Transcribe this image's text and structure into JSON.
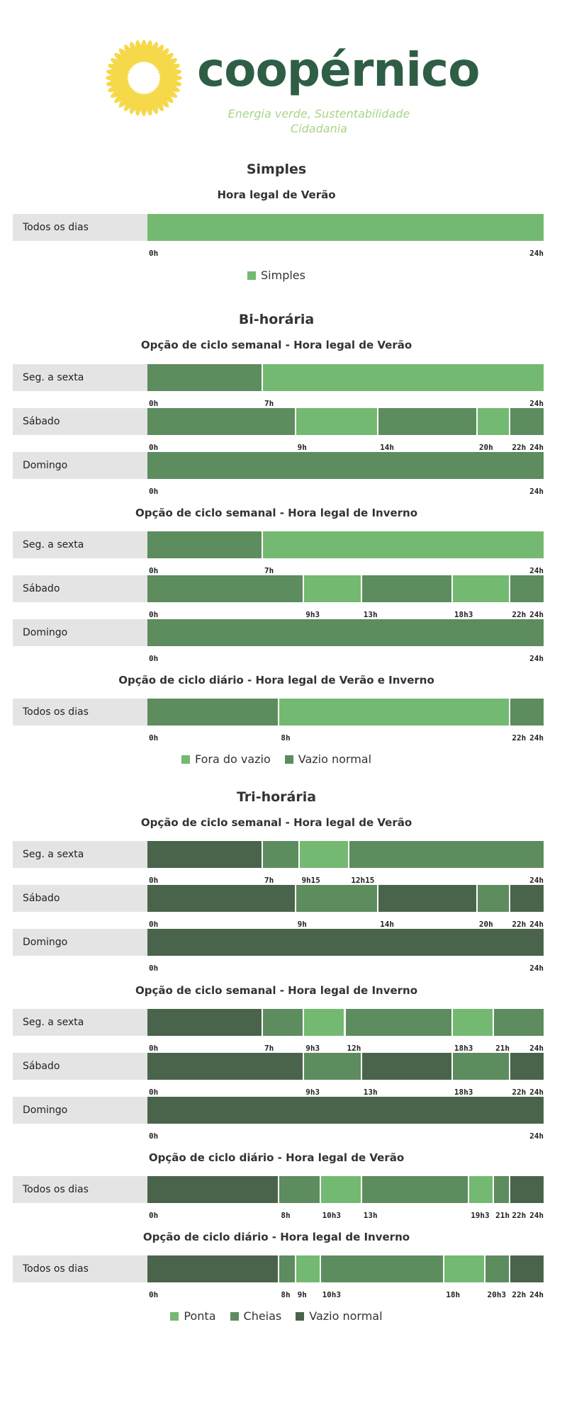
{
  "header": {
    "brand_name": "coopérnico",
    "tagline_line1": "Energia verde, Sustentabilidade",
    "tagline_line2": "Cidadania",
    "colors": {
      "sun": "#f5d94a",
      "brand": "#2e5e45",
      "tagline": "#a8d48a"
    }
  },
  "colors": {
    "ponta": "#74b971",
    "cheias": "#5d8c5e",
    "vazio_normal_tri": "#4a644b",
    "fora_do_vazio": "#74b971",
    "vazio_normal_bi": "#5d8c5e",
    "simples": "#74b971",
    "label_bg": "#e4e4e4"
  },
  "chart_data": [
    {
      "type": "bar",
      "title": "Simples",
      "subtitle": "Hora legal de Verão",
      "rows": [
        {
          "label": "Todos os dias",
          "segments": [
            {
              "start": 0,
              "end": 24,
              "period": "simples"
            }
          ],
          "ticks": [
            {
              "value": 0,
              "label": "0h"
            },
            {
              "value": 24,
              "label": "24h"
            }
          ]
        }
      ],
      "legend": [
        {
          "key": "simples",
          "label": "Simples"
        }
      ]
    },
    {
      "type": "bar",
      "title": "Bi-horária",
      "groups": [
        {
          "subtitle": "Opção de ciclo semanal - Hora legal de Verão",
          "rows": [
            {
              "label": "Seg. a sexta",
              "segments": [
                {
                  "start": 0,
                  "end": 7,
                  "period": "vazio_normal_bi"
                },
                {
                  "start": 7,
                  "end": 24,
                  "period": "fora_do_vazio"
                }
              ],
              "ticks": [
                {
                  "value": 0,
                  "label": "0h"
                },
                {
                  "value": 7,
                  "label": "7h"
                },
                {
                  "value": 24,
                  "label": "24h"
                }
              ]
            },
            {
              "label": "Sábado",
              "segments": [
                {
                  "start": 0,
                  "end": 9,
                  "period": "vazio_normal_bi"
                },
                {
                  "start": 9,
                  "end": 14,
                  "period": "fora_do_vazio"
                },
                {
                  "start": 14,
                  "end": 20,
                  "period": "vazio_normal_bi"
                },
                {
                  "start": 20,
                  "end": 22,
                  "period": "fora_do_vazio"
                },
                {
                  "start": 22,
                  "end": 24,
                  "period": "vazio_normal_bi"
                }
              ],
              "ticks": [
                {
                  "value": 0,
                  "label": "0h"
                },
                {
                  "value": 9,
                  "label": "9h"
                },
                {
                  "value": 14,
                  "label": "14h"
                },
                {
                  "value": 20,
                  "label": "20h"
                },
                {
                  "value": 22,
                  "label": "22h"
                },
                {
                  "value": 24,
                  "label": "24h"
                }
              ]
            },
            {
              "label": "Domingo",
              "segments": [
                {
                  "start": 0,
                  "end": 24,
                  "period": "vazio_normal_bi"
                }
              ],
              "ticks": [
                {
                  "value": 0,
                  "label": "0h"
                },
                {
                  "value": 24,
                  "label": "24h"
                }
              ]
            }
          ]
        },
        {
          "subtitle": "Opção de ciclo semanal - Hora legal de Inverno",
          "rows": [
            {
              "label": "Seg. a sexta",
              "segments": [
                {
                  "start": 0,
                  "end": 7,
                  "period": "vazio_normal_bi"
                },
                {
                  "start": 7,
                  "end": 24,
                  "period": "fora_do_vazio"
                }
              ],
              "ticks": [
                {
                  "value": 0,
                  "label": "0h"
                },
                {
                  "value": 7,
                  "label": "7h"
                },
                {
                  "value": 24,
                  "label": "24h"
                }
              ]
            },
            {
              "label": "Sábado",
              "segments": [
                {
                  "start": 0,
                  "end": 9.5,
                  "period": "vazio_normal_bi"
                },
                {
                  "start": 9.5,
                  "end": 13,
                  "period": "fora_do_vazio"
                },
                {
                  "start": 13,
                  "end": 18.5,
                  "period": "vazio_normal_bi"
                },
                {
                  "start": 18.5,
                  "end": 22,
                  "period": "fora_do_vazio"
                },
                {
                  "start": 22,
                  "end": 24,
                  "period": "vazio_normal_bi"
                }
              ],
              "ticks": [
                {
                  "value": 0,
                  "label": "0h"
                },
                {
                  "value": 9.5,
                  "label": "9h3"
                },
                {
                  "value": 13,
                  "label": "13h"
                },
                {
                  "value": 18.5,
                  "label": "18h3"
                },
                {
                  "value": 22,
                  "label": "22h"
                },
                {
                  "value": 24,
                  "label": "24h"
                }
              ]
            },
            {
              "label": "Domingo",
              "segments": [
                {
                  "start": 0,
                  "end": 24,
                  "period": "vazio_normal_bi"
                }
              ],
              "ticks": [
                {
                  "value": 0,
                  "label": "0h"
                },
                {
                  "value": 24,
                  "label": "24h"
                }
              ]
            }
          ]
        },
        {
          "subtitle": "Opção de ciclo diário - Hora legal de Verão e Inverno",
          "rows": [
            {
              "label": "Todos os dias",
              "segments": [
                {
                  "start": 0,
                  "end": 8,
                  "period": "vazio_normal_bi"
                },
                {
                  "start": 8,
                  "end": 22,
                  "period": "fora_do_vazio"
                },
                {
                  "start": 22,
                  "end": 24,
                  "period": "vazio_normal_bi"
                }
              ],
              "ticks": [
                {
                  "value": 0,
                  "label": "0h"
                },
                {
                  "value": 8,
                  "label": "8h"
                },
                {
                  "value": 22,
                  "label": "22h"
                },
                {
                  "value": 24,
                  "label": "24h"
                }
              ]
            }
          ]
        }
      ],
      "legend": [
        {
          "key": "fora_do_vazio",
          "label": "Fora do vazio"
        },
        {
          "key": "vazio_normal_bi",
          "label": "Vazio normal"
        }
      ]
    },
    {
      "type": "bar",
      "title": "Tri-horária",
      "groups": [
        {
          "subtitle": "Opção de ciclo semanal - Hora legal de Verão",
          "rows": [
            {
              "label": "Seg. a sexta",
              "segments": [
                {
                  "start": 0,
                  "end": 7,
                  "period": "vazio_normal_tri"
                },
                {
                  "start": 7,
                  "end": 9.25,
                  "period": "cheias"
                },
                {
                  "start": 9.25,
                  "end": 12.25,
                  "period": "ponta"
                },
                {
                  "start": 12.25,
                  "end": 24,
                  "period": "cheias"
                }
              ],
              "ticks": [
                {
                  "value": 0,
                  "label": "0h"
                },
                {
                  "value": 7,
                  "label": "7h"
                },
                {
                  "value": 9.25,
                  "label": "9h15"
                },
                {
                  "value": 12.25,
                  "label": "12h15"
                },
                {
                  "value": 24,
                  "label": "24h"
                }
              ]
            },
            {
              "label": "Sábado",
              "segments": [
                {
                  "start": 0,
                  "end": 9,
                  "period": "vazio_normal_tri"
                },
                {
                  "start": 9,
                  "end": 14,
                  "period": "cheias"
                },
                {
                  "start": 14,
                  "end": 20,
                  "period": "vazio_normal_tri"
                },
                {
                  "start": 20,
                  "end": 22,
                  "period": "cheias"
                },
                {
                  "start": 22,
                  "end": 24,
                  "period": "vazio_normal_tri"
                }
              ],
              "ticks": [
                {
                  "value": 0,
                  "label": "0h"
                },
                {
                  "value": 9,
                  "label": "9h"
                },
                {
                  "value": 14,
                  "label": "14h"
                },
                {
                  "value": 20,
                  "label": "20h"
                },
                {
                  "value": 22,
                  "label": "22h"
                },
                {
                  "value": 24,
                  "label": "24h"
                }
              ]
            },
            {
              "label": "Domingo",
              "segments": [
                {
                  "start": 0,
                  "end": 24,
                  "period": "vazio_normal_tri"
                }
              ],
              "ticks": [
                {
                  "value": 0,
                  "label": "0h"
                },
                {
                  "value": 24,
                  "label": "24h"
                }
              ]
            }
          ]
        },
        {
          "subtitle": "Opção de ciclo semanal - Hora legal de Inverno",
          "rows": [
            {
              "label": "Seg. a sexta",
              "segments": [
                {
                  "start": 0,
                  "end": 7,
                  "period": "vazio_normal_tri"
                },
                {
                  "start": 7,
                  "end": 9.5,
                  "period": "cheias"
                },
                {
                  "start": 9.5,
                  "end": 12,
                  "period": "ponta"
                },
                {
                  "start": 12,
                  "end": 18.5,
                  "period": "cheias"
                },
                {
                  "start": 18.5,
                  "end": 21,
                  "period": "ponta"
                },
                {
                  "start": 21,
                  "end": 24,
                  "period": "cheias"
                }
              ],
              "ticks": [
                {
                  "value": 0,
                  "label": "0h"
                },
                {
                  "value": 7,
                  "label": "7h"
                },
                {
                  "value": 9.5,
                  "label": "9h3"
                },
                {
                  "value": 12,
                  "label": "12h"
                },
                {
                  "value": 18.5,
                  "label": "18h3"
                },
                {
                  "value": 21,
                  "label": "21h"
                },
                {
                  "value": 24,
                  "label": "24h"
                }
              ]
            },
            {
              "label": "Sábado",
              "segments": [
                {
                  "start": 0,
                  "end": 9.5,
                  "period": "vazio_normal_tri"
                },
                {
                  "start": 9.5,
                  "end": 13,
                  "period": "cheias"
                },
                {
                  "start": 13,
                  "end": 18.5,
                  "period": "vazio_normal_tri"
                },
                {
                  "start": 18.5,
                  "end": 22,
                  "period": "cheias"
                },
                {
                  "start": 22,
                  "end": 24,
                  "period": "vazio_normal_tri"
                }
              ],
              "ticks": [
                {
                  "value": 0,
                  "label": "0h"
                },
                {
                  "value": 9.5,
                  "label": "9h3"
                },
                {
                  "value": 13,
                  "label": "13h"
                },
                {
                  "value": 18.5,
                  "label": "18h3"
                },
                {
                  "value": 22,
                  "label": "22h"
                },
                {
                  "value": 24,
                  "label": "24h"
                }
              ]
            },
            {
              "label": "Domingo",
              "segments": [
                {
                  "start": 0,
                  "end": 24,
                  "period": "vazio_normal_tri"
                }
              ],
              "ticks": [
                {
                  "value": 0,
                  "label": "0h"
                },
                {
                  "value": 24,
                  "label": "24h"
                }
              ]
            }
          ]
        },
        {
          "subtitle": "Opção de ciclo diário - Hora legal de Verão",
          "rows": [
            {
              "label": "Todos os dias",
              "segments": [
                {
                  "start": 0,
                  "end": 8,
                  "period": "vazio_normal_tri"
                },
                {
                  "start": 8,
                  "end": 10.5,
                  "period": "cheias"
                },
                {
                  "start": 10.5,
                  "end": 13,
                  "period": "ponta"
                },
                {
                  "start": 13,
                  "end": 19.5,
                  "period": "cheias"
                },
                {
                  "start": 19.5,
                  "end": 21,
                  "period": "ponta"
                },
                {
                  "start": 21,
                  "end": 22,
                  "period": "cheias"
                },
                {
                  "start": 22,
                  "end": 24,
                  "period": "vazio_normal_tri"
                }
              ],
              "ticks": [
                {
                  "value": 0,
                  "label": "0h"
                },
                {
                  "value": 8,
                  "label": "8h"
                },
                {
                  "value": 10.5,
                  "label": "10h3"
                },
                {
                  "value": 13,
                  "label": "13h"
                },
                {
                  "value": 19.5,
                  "label": "19h3"
                },
                {
                  "value": 21,
                  "label": "21h"
                },
                {
                  "value": 22,
                  "label": "22h"
                },
                {
                  "value": 24,
                  "label": "24h"
                }
              ]
            }
          ]
        },
        {
          "subtitle": "Opção de ciclo diário - Hora legal de Inverno",
          "rows": [
            {
              "label": "Todos os dias",
              "segments": [
                {
                  "start": 0,
                  "end": 8,
                  "period": "vazio_normal_tri"
                },
                {
                  "start": 8,
                  "end": 9,
                  "period": "cheias"
                },
                {
                  "start": 9,
                  "end": 10.5,
                  "period": "ponta"
                },
                {
                  "start": 10.5,
                  "end": 18,
                  "period": "cheias"
                },
                {
                  "start": 18,
                  "end": 20.5,
                  "period": "ponta"
                },
                {
                  "start": 20.5,
                  "end": 22,
                  "period": "cheias"
                },
                {
                  "start": 22,
                  "end": 24,
                  "period": "vazio_normal_tri"
                }
              ],
              "ticks": [
                {
                  "value": 0,
                  "label": "0h"
                },
                {
                  "value": 8,
                  "label": "8h"
                },
                {
                  "value": 9,
                  "label": "9h"
                },
                {
                  "value": 10.5,
                  "label": "10h3"
                },
                {
                  "value": 18,
                  "label": "18h"
                },
                {
                  "value": 20.5,
                  "label": "20h3"
                },
                {
                  "value": 22,
                  "label": "22h"
                },
                {
                  "value": 24,
                  "label": "24h"
                }
              ]
            }
          ]
        }
      ],
      "legend": [
        {
          "key": "ponta",
          "label": "Ponta"
        },
        {
          "key": "cheias",
          "label": "Cheias"
        },
        {
          "key": "vazio_normal_tri",
          "label": "Vazio normal"
        }
      ]
    }
  ]
}
